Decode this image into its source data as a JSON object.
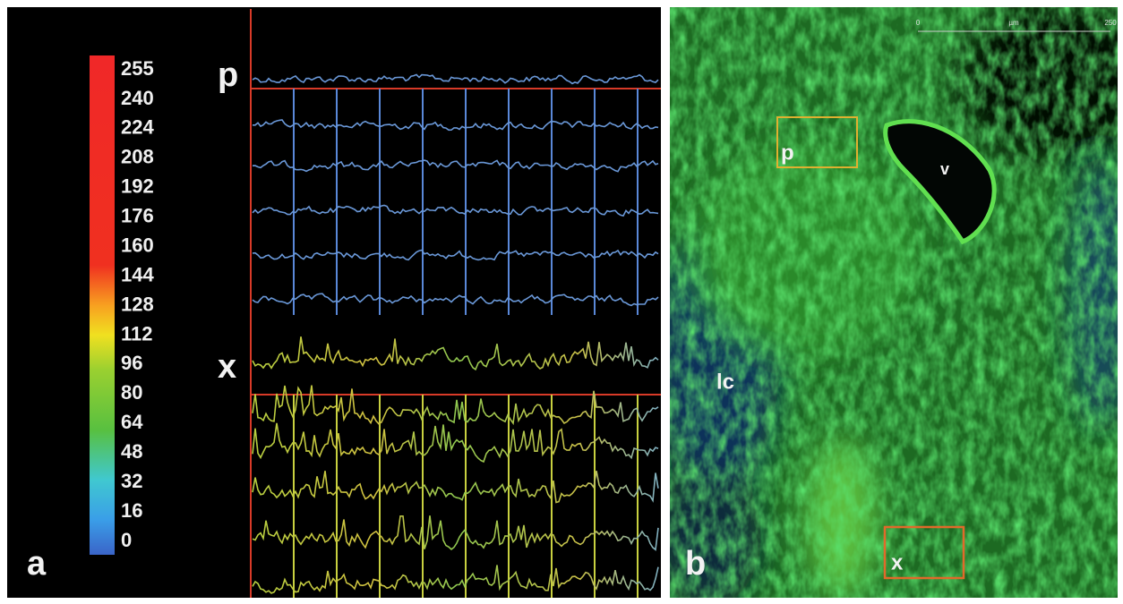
{
  "panel_a": {
    "label": "a",
    "colorbar_labels": [
      255,
      240,
      224,
      208,
      192,
      176,
      160,
      144,
      128,
      112,
      96,
      80,
      64,
      48,
      32,
      16,
      0
    ],
    "section_labels": [
      "p",
      "x"
    ]
  },
  "panel_b": {
    "label": "b",
    "region_labels": [
      "p",
      "x"
    ],
    "vessel_label": "v",
    "tissue_label": "lc",
    "scale_bar": {
      "start": "0",
      "unit": "µm",
      "end": "250"
    }
  }
}
